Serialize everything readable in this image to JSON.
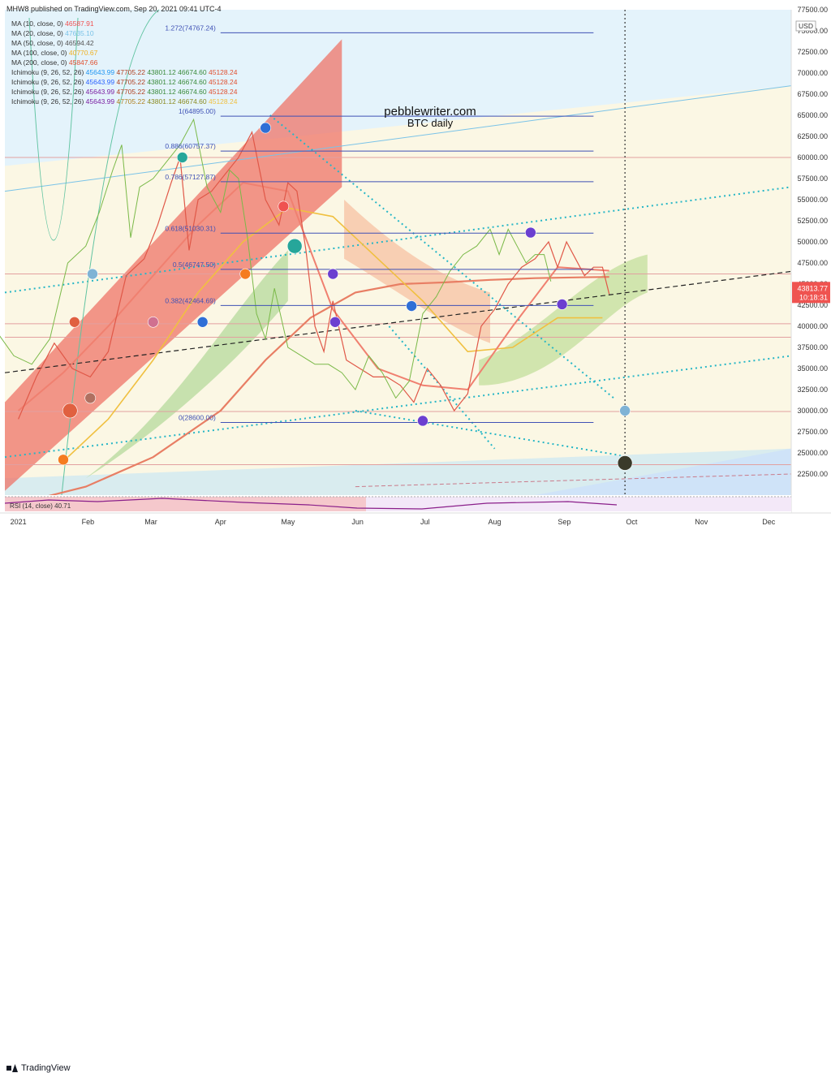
{
  "header": {
    "publisher": "MHW8 published on TradingView.com, Sep 20, 2021 09:41 UTC-4"
  },
  "legend": [
    {
      "label": "MA (10, close, 0)",
      "values": [
        "46587.91"
      ],
      "colors": [
        "#f05050"
      ]
    },
    {
      "label": "MA (20, close, 0)",
      "values": [
        "47635.10"
      ],
      "colors": [
        "#7ac3e8"
      ]
    },
    {
      "label": "MA (50, close, 0)",
      "values": [
        "46594.42"
      ],
      "colors": [
        "#555555"
      ]
    },
    {
      "label": "MA (100, close, 0)",
      "values": [
        "40770.67"
      ],
      "colors": [
        "#f0b020"
      ]
    },
    {
      "label": "MA (200, close, 0)",
      "values": [
        "45847.66"
      ],
      "colors": [
        "#e05030"
      ]
    },
    {
      "label": "Ichimoku (9, 26, 52, 26)",
      "values": [
        "45643.99",
        "47705.22",
        "43801.12",
        "46674.60",
        "45128.24"
      ],
      "colors": [
        "#2196f3",
        "#b04020",
        "#3a8a3a",
        "#3a8a3a",
        "#e05030"
      ]
    },
    {
      "label": "Ichimoku (9, 26, 52, 26)",
      "values": [
        "45643.99",
        "47705.22",
        "43801.12",
        "46674.60",
        "45128.24"
      ],
      "colors": [
        "#2962ff",
        "#b04020",
        "#3a8a3a",
        "#3a8a3a",
        "#e05030"
      ]
    },
    {
      "label": "Ichimoku (9, 26, 52, 26)",
      "values": [
        "45643.99",
        "47705.22",
        "43801.12",
        "46674.60",
        "45128.24"
      ],
      "colors": [
        "#7b1fa2",
        "#b04020",
        "#3a8a3a",
        "#3a8a3a",
        "#e05030"
      ]
    },
    {
      "label": "Ichimoku (9, 26, 52, 26)",
      "values": [
        "45643.99",
        "47705.22",
        "43801.12",
        "46674.60",
        "45128.24"
      ],
      "colors": [
        "#7b1fa2",
        "#b08020",
        "#8a8a20",
        "#8a8a20",
        "#f0c040"
      ]
    }
  ],
  "watermark": {
    "line1": "pebblewriter.com",
    "line2": "BTC daily"
  },
  "currency_label": "USD",
  "price_tag": {
    "value": "43813.77",
    "countdown": "10:18:31",
    "color": "#ef5350"
  },
  "bottom_indicator_label": "RSI (14, close) 40.71",
  "footer": {
    "brand": "TradingView"
  },
  "chart_data": {
    "type": "line",
    "title": "",
    "subtitle": "",
    "xlabel": "",
    "ylabel": "",
    "ylim": [
      20000,
      77500
    ],
    "yticks": [
      22500,
      25000,
      27500,
      30000,
      32500,
      35000,
      37500,
      40000,
      42500,
      45000,
      47500,
      50000,
      52500,
      55000,
      57500,
      60000,
      62500,
      65000,
      67500,
      70000,
      72500,
      75000,
      77500
    ],
    "ytick_labels": [
      "22500.00",
      "25000.00",
      "27500.00",
      "30000.00",
      "32500.00",
      "35000.00",
      "37500.00",
      "40000.00",
      "42500.00",
      "45000.00",
      "47500.00",
      "50000.00",
      "52500.00",
      "55000.00",
      "57500.00",
      "60000.00",
      "62500.00",
      "65000.00",
      "67500.00",
      "70000.00",
      "72500.00",
      "75000.00",
      "77500.00"
    ],
    "x_labels": [
      "2021",
      "Feb",
      "Mar",
      "Apr",
      "May",
      "Jun",
      "Jul",
      "Aug",
      "Sep",
      "Oct",
      "Nov",
      "Dec"
    ],
    "x_label_days": [
      0,
      31,
      59,
      90,
      120,
      151,
      181,
      212,
      243,
      273,
      304,
      334
    ],
    "grid": false,
    "fib_levels": [
      {
        "ratio": "1.272",
        "price": 74767.24,
        "label": "1.272(74767.24)"
      },
      {
        "ratio": "1",
        "price": 64895.0,
        "label": "1(64895.00)"
      },
      {
        "ratio": "0.886",
        "price": 60757.37,
        "label": "0.886(60757.37)"
      },
      {
        "ratio": "0.786",
        "price": 57127.87,
        "label": "0.786(57127.87)"
      },
      {
        "ratio": "0.618",
        "price": 51030.31,
        "label": "0.618(51030.31)"
      },
      {
        "ratio": "0.5",
        "price": 46747.5,
        "label": "0.5(46747.50)"
      },
      {
        "ratio": "0.382",
        "price": 42464.69,
        "label": "0.382(42464.69)"
      },
      {
        "ratio": "0",
        "price": 28600.0,
        "label": "0(28600.00)"
      }
    ],
    "horizontal_lines": [
      60000,
      40300,
      38700,
      46200,
      29900,
      23600
    ],
    "price_series": {
      "name": "",
      "x": [
        0,
        8,
        16,
        24,
        32,
        40,
        48,
        56,
        62,
        68,
        72,
        76,
        80,
        86,
        92,
        98,
        104,
        110,
        116,
        120,
        124,
        128,
        132,
        136,
        140,
        146,
        152,
        158,
        164,
        170,
        176,
        182,
        188,
        194,
        200,
        206,
        212,
        218,
        224,
        230,
        236,
        240,
        244,
        248,
        252,
        256,
        260,
        263
      ],
      "y": [
        29000,
        34000,
        38000,
        35000,
        34000,
        37000,
        46000,
        48000,
        52000,
        57000,
        60000,
        49000,
        55000,
        56000,
        58000,
        60000,
        63000,
        55000,
        52000,
        57000,
        56000,
        49000,
        40000,
        37000,
        43000,
        36000,
        35000,
        34000,
        34000,
        33000,
        31000,
        35000,
        33000,
        30000,
        32000,
        40000,
        42000,
        45000,
        47000,
        48000,
        50000,
        47000,
        50000,
        48000,
        46000,
        47000,
        47000,
        43814
      ]
    },
    "ma_series": {
      "x": [
        0,
        20,
        40,
        60,
        80,
        100,
        120,
        140,
        160,
        180,
        200,
        220,
        240,
        263
      ],
      "y": [
        30000,
        34500,
        40000,
        46000,
        52000,
        57000,
        56000,
        42000,
        35000,
        33000,
        32500,
        40000,
        47000,
        46588
      ]
    },
    "ma200_series": {
      "x": [
        0,
        30,
        60,
        90,
        110,
        130,
        150,
        170,
        190,
        210,
        230,
        250,
        263
      ],
      "y": [
        19000,
        21000,
        24500,
        30000,
        36000,
        41000,
        44000,
        45000,
        45200,
        45500,
        45700,
        45800,
        45848
      ]
    },
    "ma100_series": {
      "x": [
        20,
        40,
        60,
        80,
        100,
        120,
        140,
        160,
        180,
        200,
        220,
        240,
        260
      ],
      "y": [
        24000,
        29000,
        36000,
        44000,
        50000,
        54000,
        53000,
        48000,
        43000,
        37000,
        37500,
        41000,
        41000
      ]
    },
    "markers": [
      {
        "x": 110,
        "y": 63500,
        "color": "#2f6fd6"
      },
      {
        "x": 73,
        "y": 60000,
        "color": "#26a69a"
      },
      {
        "x": 118,
        "y": 54200,
        "color": "#ef5350"
      },
      {
        "x": 123,
        "y": 49500,
        "color": "#26a69a",
        "size": "large"
      },
      {
        "x": 101,
        "y": 46200,
        "color": "#f57c20"
      },
      {
        "x": 33,
        "y": 46200,
        "color": "#7fb3d5"
      },
      {
        "x": 140,
        "y": 46200,
        "color": "#6b3fd0"
      },
      {
        "x": 25,
        "y": 40500,
        "color": "#e06040"
      },
      {
        "x": 60,
        "y": 40500,
        "color": "#d07090"
      },
      {
        "x": 82,
        "y": 40500,
        "color": "#2f6fd6"
      },
      {
        "x": 141,
        "y": 40500,
        "color": "#6b3fd0"
      },
      {
        "x": 175,
        "y": 42400,
        "color": "#2f6fd6"
      },
      {
        "x": 228,
        "y": 51100,
        "color": "#6b3fd0"
      },
      {
        "x": 242,
        "y": 42600,
        "color": "#6b3fd0"
      },
      {
        "x": 32,
        "y": 31500,
        "color": "#b07060"
      },
      {
        "x": 23,
        "y": 30000,
        "color": "#e06040",
        "size": "large"
      },
      {
        "x": 180,
        "y": 28800,
        "color": "#6b3fd0"
      },
      {
        "x": 270,
        "y": 30000,
        "color": "#7fb3d5"
      },
      {
        "x": 20,
        "y": 24200,
        "color": "#f57c20"
      },
      {
        "x": 270,
        "y": 23800,
        "color": "#3a3a2a",
        "size": "large"
      }
    ]
  }
}
